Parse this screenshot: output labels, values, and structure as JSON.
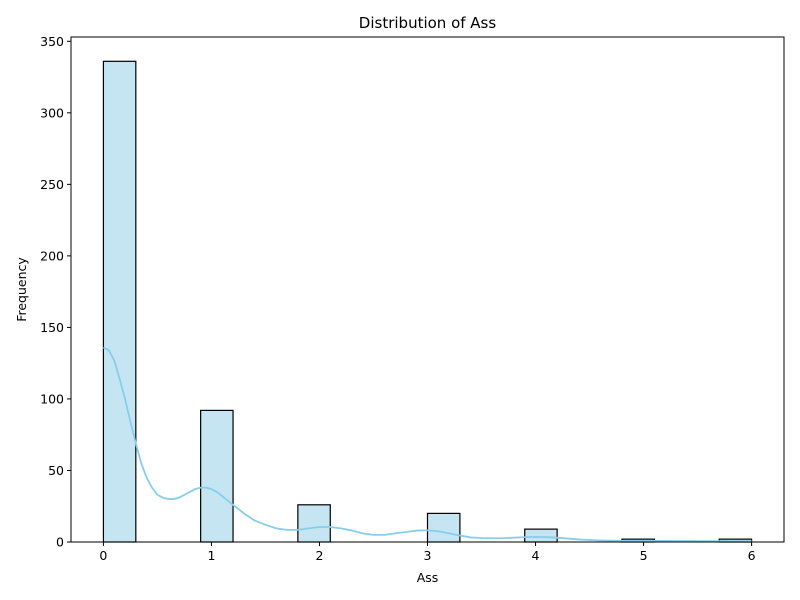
{
  "chart_data": {
    "type": "bar",
    "title": "Distribution of Ass",
    "xlabel": "Ass",
    "ylabel": "Frequency",
    "xlim": [
      -0.3,
      6.3
    ],
    "ylim": [
      0,
      353
    ],
    "xticks": [
      0,
      1,
      2,
      3,
      4,
      5,
      6
    ],
    "xtick_labels": [
      "0",
      "1",
      "2",
      "3",
      "4",
      "5",
      "6"
    ],
    "yticks": [
      0,
      50,
      100,
      150,
      200,
      250,
      300,
      350
    ],
    "ytick_labels": [
      "0",
      "50",
      "100",
      "150",
      "200",
      "250",
      "300",
      "350"
    ],
    "bin_width": 0.3,
    "bins": [
      {
        "start": 0.0,
        "value": 336
      },
      {
        "start": 0.9,
        "value": 92
      },
      {
        "start": 1.8,
        "value": 26
      },
      {
        "start": 3.0,
        "value": 20
      },
      {
        "start": 3.9,
        "value": 9
      },
      {
        "start": 4.8,
        "value": 2
      },
      {
        "start": 5.7,
        "value": 2
      }
    ],
    "bar_fill": "#c5e5f3",
    "bar_edge": "#000000",
    "kde": {
      "name": "KDE",
      "color": "#87ceeb",
      "points": [
        [
          0.0,
          136
        ],
        [
          0.05,
          134
        ],
        [
          0.1,
          127
        ],
        [
          0.15,
          114
        ],
        [
          0.2,
          100
        ],
        [
          0.25,
          84
        ],
        [
          0.3,
          69
        ],
        [
          0.35,
          55
        ],
        [
          0.4,
          45
        ],
        [
          0.45,
          38
        ],
        [
          0.5,
          33
        ],
        [
          0.55,
          31
        ],
        [
          0.6,
          30
        ],
        [
          0.65,
          30
        ],
        [
          0.7,
          31
        ],
        [
          0.75,
          33
        ],
        [
          0.8,
          35
        ],
        [
          0.85,
          37
        ],
        [
          0.9,
          38
        ],
        [
          0.95,
          38
        ],
        [
          1.0,
          37
        ],
        [
          1.05,
          35
        ],
        [
          1.1,
          32
        ],
        [
          1.2,
          26
        ],
        [
          1.3,
          20
        ],
        [
          1.4,
          15
        ],
        [
          1.5,
          12
        ],
        [
          1.6,
          9.5
        ],
        [
          1.7,
          8.5
        ],
        [
          1.8,
          8.5
        ],
        [
          1.9,
          9.5
        ],
        [
          2.0,
          10.5
        ],
        [
          2.1,
          10.5
        ],
        [
          2.2,
          9.5
        ],
        [
          2.3,
          8
        ],
        [
          2.4,
          6
        ],
        [
          2.5,
          5
        ],
        [
          2.6,
          5
        ],
        [
          2.7,
          6
        ],
        [
          2.8,
          7
        ],
        [
          2.9,
          8
        ],
        [
          3.0,
          8.2
        ],
        [
          3.1,
          7.5
        ],
        [
          3.2,
          6
        ],
        [
          3.3,
          4.5
        ],
        [
          3.4,
          3.2
        ],
        [
          3.5,
          2.8
        ],
        [
          3.6,
          2.6
        ],
        [
          3.7,
          2.7
        ],
        [
          3.8,
          3
        ],
        [
          3.9,
          3.4
        ],
        [
          4.0,
          3.6
        ],
        [
          4.1,
          3.4
        ],
        [
          4.2,
          3
        ],
        [
          4.3,
          2.4
        ],
        [
          4.4,
          1.8
        ],
        [
          4.5,
          1.4
        ],
        [
          4.6,
          1.1
        ],
        [
          4.7,
          0.9
        ],
        [
          4.8,
          0.8
        ],
        [
          4.9,
          0.8
        ],
        [
          5.0,
          0.8
        ],
        [
          5.2,
          0.8
        ],
        [
          5.4,
          0.7
        ],
        [
          5.6,
          0.6
        ],
        [
          5.8,
          0.6
        ],
        [
          6.0,
          0.5
        ]
      ]
    }
  }
}
